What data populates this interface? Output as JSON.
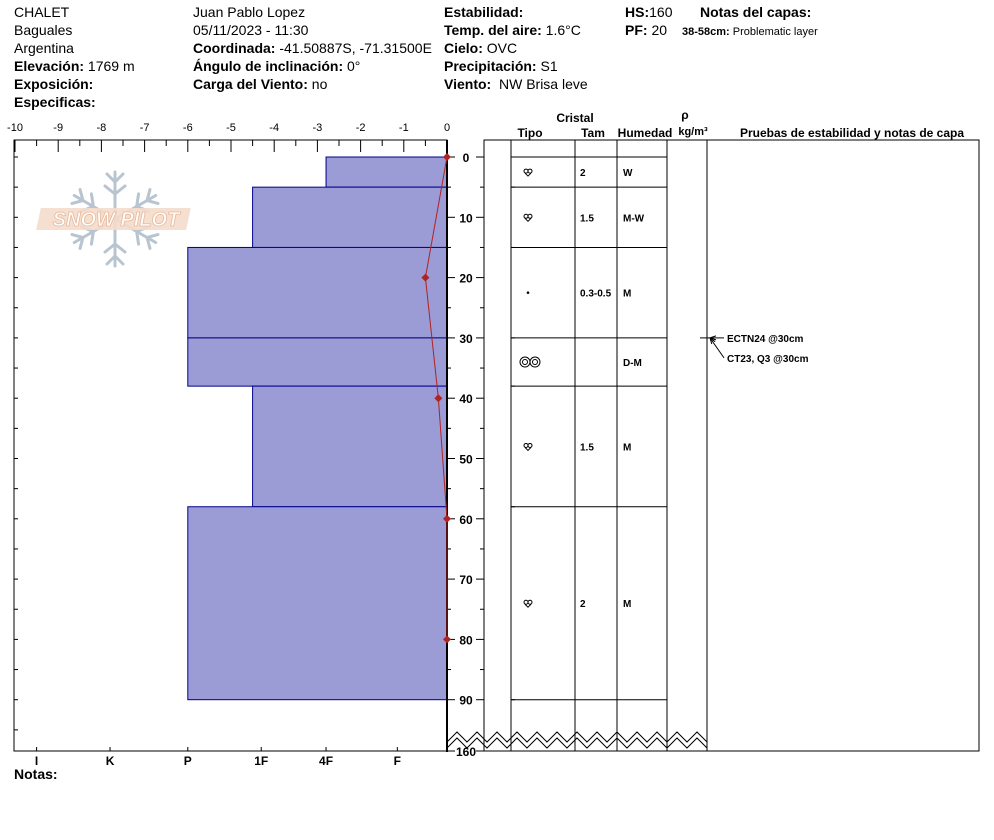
{
  "header": {
    "location": "CHALET",
    "area": "Baguales",
    "country": "Argentina",
    "elevation_label": "Elevación:",
    "elevation_value": "1769 m",
    "aspect_label": "Exposición:",
    "specifics_label": "Especificas:",
    "observer": "Juan Pablo  Lopez",
    "datetime": "05/11/2023 - 11:30",
    "coord_label": "Coordinada:",
    "coord_value": "-41.50887S, -71.31500E",
    "slope_label": "Ángulo de inclinación:",
    "slope_value": "0°",
    "wind_load_label": "Carga del Viento:",
    "wind_load_value": "no",
    "stability_label": "Estabilidad:",
    "air_temp_label": "Temp. del aire:",
    "air_temp_value": "1.6°C",
    "sky_label": "Cielo:",
    "sky_value": "OVC",
    "precip_label": "Precipitación:",
    "precip_value": "S1",
    "wind_label": "Viento:",
    "wind_value": "NW Brisa leve",
    "hs_label": "HS:",
    "hs_value": "160",
    "pf_label": "PF:",
    "pf_value": "20",
    "layer_notes_label": "Notas del capas:",
    "layer_note_range": "38-58cm:",
    "layer_note_text": "Problematic layer"
  },
  "columns": {
    "crystal": "Cristal",
    "type": "Tipo",
    "size": "Tam",
    "moisture": "Humedad",
    "rho": "ρ",
    "density_unit": "kg/m³",
    "tests": "Pruebas de estabilidad y notas de capa"
  },
  "logo_text": "SNOW PILOT",
  "notes_label": "Notas:",
  "stability_tests": [
    {
      "text": "ECTN24 @30cm",
      "depth": 30
    },
    {
      "text": "CT23, Q3 @30cm",
      "depth": 30
    }
  ],
  "chart_data": {
    "type": "snow_profile",
    "temp_axis": {
      "min": -10,
      "max": 0,
      "ticks": [
        "-10",
        "-9",
        "-8",
        "-7",
        "-6",
        "-5",
        "-4",
        "-3",
        "-2",
        "-1",
        "0"
      ]
    },
    "depth_axis": {
      "min": 0,
      "max": 160,
      "ticks": [
        "0",
        "10",
        "20",
        "30",
        "40",
        "50",
        "60",
        "70",
        "80",
        "90",
        "160"
      ],
      "unit": "cm"
    },
    "hardness_labels": [
      "I",
      "K",
      "P",
      "1F",
      "4F",
      "F"
    ],
    "colors": {
      "layer_fill": "#9b9bd6",
      "layer_stroke": "#00008b",
      "temp_line": "#b22222"
    },
    "layers": [
      {
        "top": 0,
        "bottom": 5,
        "hardness": "F",
        "hardness_value": 2.8,
        "grain": "rounding",
        "size": "2",
        "moisture": "W"
      },
      {
        "top": 5,
        "bottom": 15,
        "hardness": "4F",
        "hardness_value": 4.5,
        "grain": "rounding",
        "size": "1.5",
        "moisture": "M-W"
      },
      {
        "top": 15,
        "bottom": 30,
        "hardness": "P",
        "hardness_value": 6.0,
        "grain": "dot",
        "size": "0.3-0.5",
        "moisture": "M"
      },
      {
        "top": 30,
        "bottom": 38,
        "hardness": "P",
        "hardness_value": 6.0,
        "grain": "melt-clusters",
        "size": "",
        "moisture": "D-M"
      },
      {
        "top": 38,
        "bottom": 58,
        "hardness": "4F",
        "hardness_value": 4.5,
        "grain": "rounding",
        "size": "1.5",
        "moisture": "M"
      },
      {
        "top": 58,
        "bottom": 90,
        "hardness": "P",
        "hardness_value": 6.0,
        "grain": "rounding",
        "size": "2",
        "moisture": "M"
      }
    ],
    "temperature_profile": [
      {
        "depth": 0,
        "temp": 0
      },
      {
        "depth": 20,
        "temp": -0.5
      },
      {
        "depth": 40,
        "temp": -0.2
      },
      {
        "depth": 60,
        "temp": 0
      },
      {
        "depth": 80,
        "temp": 0
      }
    ]
  }
}
